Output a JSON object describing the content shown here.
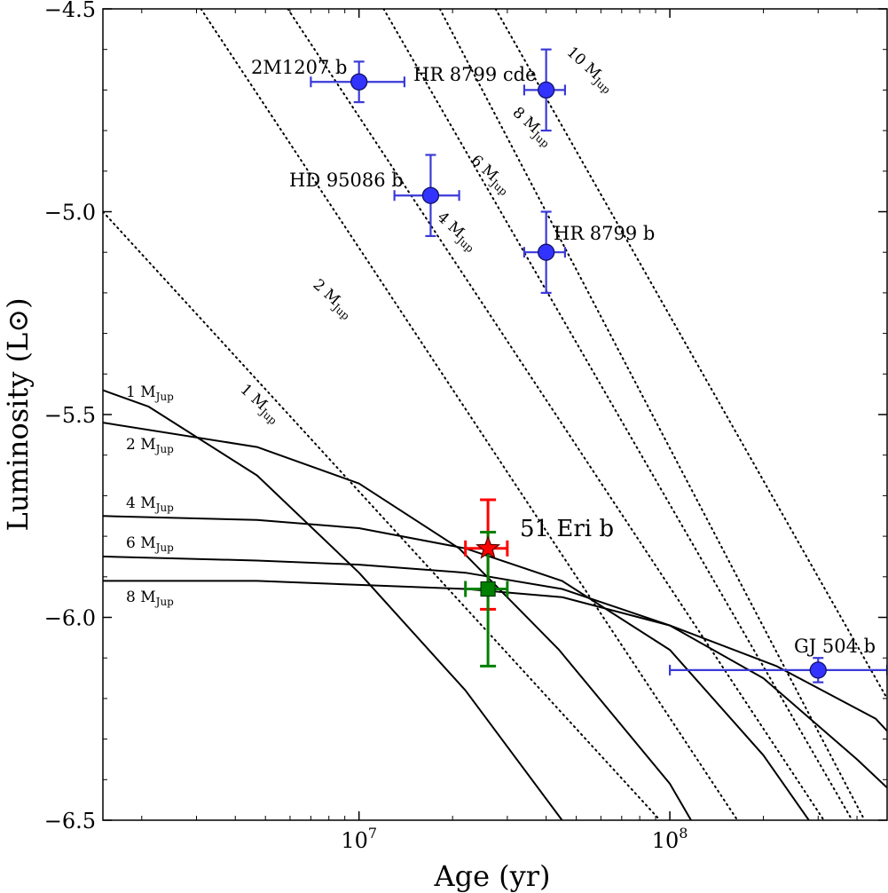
{
  "chart_data": {
    "type": "scatter",
    "title": "",
    "xlabel": "Age (yr)",
    "ylabel": "Luminosity (L⊙)",
    "xscale": "log",
    "xlim": [
      1500000,
      500000000
    ],
    "ylim": [
      -6.5,
      -4.5
    ],
    "x_ticks": [
      {
        "value": 10000000,
        "base": "10",
        "exp": "7"
      },
      {
        "value": 100000000,
        "base": "10",
        "exp": "8"
      }
    ],
    "y_ticks": [
      {
        "value": -4.5,
        "label": "−4.5"
      },
      {
        "value": -5.0,
        "label": "−5.0"
      },
      {
        "value": -5.5,
        "label": "−5.5"
      },
      {
        "value": -6.0,
        "label": "−6.0"
      },
      {
        "value": -6.5,
        "label": "−6.5"
      }
    ],
    "hot_start_tracks": [
      {
        "name": "1 MJup",
        "base": "1 M",
        "sub": "Jup",
        "points": [
          [
            1500000,
            -5.0
          ],
          [
            93000000,
            -6.5
          ]
        ]
      },
      {
        "name": "2 MJup",
        "base": "2 M",
        "sub": "Jup",
        "points": [
          [
            3100000,
            -4.5
          ],
          [
            165000000,
            -6.5
          ]
        ]
      },
      {
        "name": "4 MJup",
        "base": "4 M",
        "sub": "Jup",
        "points": [
          [
            5900000,
            -4.5
          ],
          [
            313000000,
            -6.5
          ]
        ]
      },
      {
        "name": "6 MJup",
        "base": "6 M",
        "sub": "Jup",
        "points": [
          [
            12000000,
            -4.5
          ],
          [
            386000000,
            -6.5
          ]
        ]
      },
      {
        "name": "8 MJup",
        "base": "8 M",
        "sub": "Jup",
        "points": [
          [
            18200000,
            -4.5
          ],
          [
            423000000,
            -6.5
          ]
        ]
      },
      {
        "name": "10 MJup",
        "base": "10 M",
        "sub": "Jup",
        "points": [
          [
            27500000,
            -4.5
          ],
          [
            500000000,
            -6.2
          ]
        ]
      }
    ],
    "cold_start_tracks": [
      {
        "name": "1 MJup",
        "base": "1 M",
        "sub": "Jup",
        "points": [
          [
            1500000,
            -5.44
          ],
          [
            2100000,
            -5.48
          ],
          [
            4700000,
            -5.65
          ],
          [
            10000000,
            -5.89
          ],
          [
            22000000,
            -6.18
          ],
          [
            45000000,
            -6.5
          ]
        ]
      },
      {
        "name": "2 MJup",
        "base": "2 M",
        "sub": "Jup",
        "points": [
          [
            1500000,
            -5.52
          ],
          [
            4700000,
            -5.58
          ],
          [
            10000000,
            -5.67
          ],
          [
            21000000,
            -5.83
          ],
          [
            44000000,
            -6.08
          ],
          [
            100000000,
            -6.41
          ],
          [
            117000000,
            -6.5
          ]
        ]
      },
      {
        "name": "4 MJup",
        "base": "4 M",
        "sub": "Jup",
        "points": [
          [
            1500000,
            -5.75
          ],
          [
            4700000,
            -5.76
          ],
          [
            10000000,
            -5.78
          ],
          [
            22000000,
            -5.83
          ],
          [
            45000000,
            -5.91
          ],
          [
            100000000,
            -6.08
          ],
          [
            200000000,
            -6.34
          ],
          [
            280000000,
            -6.5
          ]
        ]
      },
      {
        "name": "6 MJup",
        "base": "6 M",
        "sub": "Jup",
        "points": [
          [
            1500000,
            -5.85
          ],
          [
            4700000,
            -5.86
          ],
          [
            10000000,
            -5.87
          ],
          [
            22000000,
            -5.89
          ],
          [
            45000000,
            -5.93
          ],
          [
            100000000,
            -6.02
          ],
          [
            200000000,
            -6.15
          ],
          [
            400000000,
            -6.35
          ],
          [
            500000000,
            -6.42
          ]
        ]
      },
      {
        "name": "8 MJup",
        "base": "8 M",
        "sub": "Jup",
        "points": [
          [
            1500000,
            -5.91
          ],
          [
            4700000,
            -5.91
          ],
          [
            10000000,
            -5.92
          ],
          [
            22000000,
            -5.93
          ],
          [
            45000000,
            -5.95
          ],
          [
            100000000,
            -6.02
          ],
          [
            220000000,
            -6.12
          ],
          [
            460000000,
            -6.25
          ],
          [
            500000000,
            -6.28
          ]
        ]
      }
    ],
    "companions": [
      {
        "name": "2M1207 b",
        "age": 10000000,
        "age_err": [
          7000000,
          14000000
        ],
        "lum": -4.68,
        "lum_err": [
          -4.63,
          -4.73
        ]
      },
      {
        "name": "HR 8799 cde",
        "age": 40000000,
        "age_err": [
          34000000,
          46000000
        ],
        "lum": -4.7,
        "lum_err": [
          -4.6,
          -4.8
        ]
      },
      {
        "name": "HD 95086 b",
        "age": 17000000,
        "age_err": [
          13000000,
          21000000
        ],
        "lum": -4.96,
        "lum_err": [
          -4.86,
          -5.06
        ]
      },
      {
        "name": "HR 8799 b",
        "age": 40000000,
        "age_err": [
          34000000,
          46000000
        ],
        "lum": -5.1,
        "lum_err": [
          -5.0,
          -5.2
        ]
      },
      {
        "name": "GJ 504 b",
        "age": 300000000,
        "age_err": [
          100000000,
          500000000
        ],
        "lum": -6.13,
        "lum_err": [
          -6.1,
          -6.16
        ]
      }
    ],
    "target": {
      "name": "51 Eri b",
      "age": 26000000,
      "age_err": [
        22000000,
        30000000
      ],
      "estimates": [
        {
          "marker": "star",
          "color": "#ff0000",
          "lum": -5.83,
          "lum_err": [
            -5.71,
            -5.98
          ]
        },
        {
          "marker": "square",
          "color": "#008000",
          "lum": -5.93,
          "lum_err": [
            -5.79,
            -6.12
          ]
        }
      ]
    }
  },
  "colors": {
    "companion": "#3333ff",
    "companion_err": "#3a3ad8",
    "star": "#ff0000",
    "square": "#008000"
  }
}
